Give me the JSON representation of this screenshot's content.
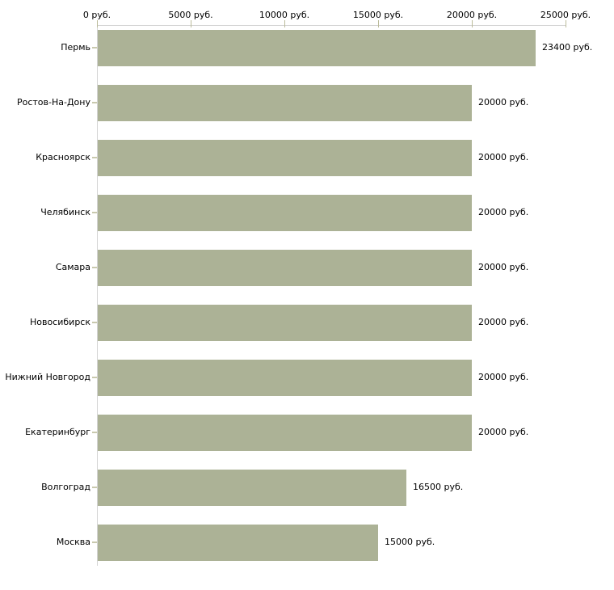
{
  "chart_data": {
    "type": "bar",
    "orientation": "horizontal",
    "title": "",
    "categories": [
      "Пермь",
      "Ростов-На-Дону",
      "Красноярск",
      "Челябинск",
      "Самара",
      "Новосибирск",
      "Нижний Новгород",
      "Екатеринбург",
      "Волгоград",
      "Москва"
    ],
    "values": [
      23400,
      20000,
      20000,
      20000,
      20000,
      20000,
      20000,
      20000,
      16500,
      15000
    ],
    "value_labels": [
      "23400 руб.",
      "20000 руб.",
      "20000 руб.",
      "20000 руб.",
      "20000 руб.",
      "20000 руб.",
      "20000 руб.",
      "20000 руб.",
      "16500 руб.",
      "15000 руб."
    ],
    "unit": "руб.",
    "x_axis": {
      "position": "top",
      "range": [
        0,
        25000
      ],
      "ticks": [
        0,
        5000,
        10000,
        15000,
        20000,
        25000
      ],
      "tick_labels": [
        "0 руб.",
        "5000 руб.",
        "10000 руб.",
        "15000 руб.",
        "20000 руб.",
        "25000 руб."
      ]
    },
    "grid": false,
    "legend": false,
    "colors": {
      "bar": "#acb296",
      "axis_line": "#d4d4d4",
      "x_tick": "#bcbc9b",
      "y_tick": "#c9c9ae",
      "text": "#000000",
      "background": "#ffffff"
    }
  }
}
